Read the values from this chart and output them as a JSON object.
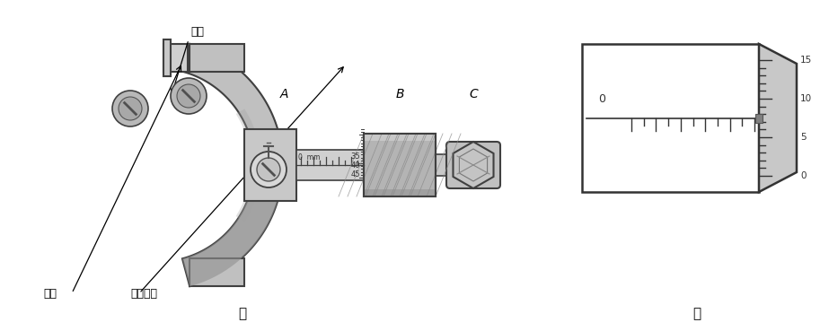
{
  "title_left": "甲",
  "title_right": "乙",
  "label_ceju": "测砧",
  "label_ceweijugan": "测微螺杆",
  "label_A": "A",
  "label_B": "B",
  "label_C": "C",
  "label_chicjia": "尺架",
  "bg_color": "#ffffff",
  "frame_gray": "#b0b0b0",
  "frame_dark": "#606060",
  "frame_edge": "#404040",
  "frame_light": "#d4d4d4",
  "font_size_label": 9,
  "font_size_title": 11,
  "font_size_scale": 7
}
